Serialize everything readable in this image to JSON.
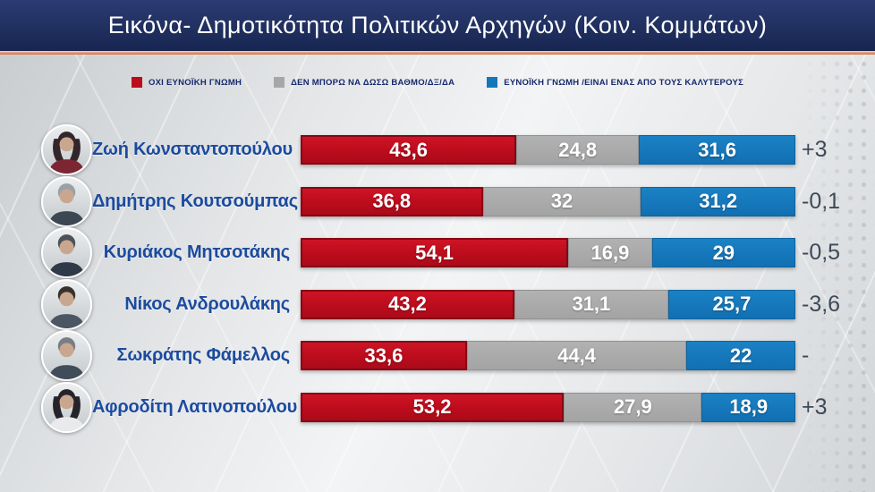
{
  "title": "Εικόνα- Δημοτικότητα Πολιτικών Αρχηγών (Κοιν. Κομμάτων)",
  "colors": {
    "titlebar_navy": "#20305f",
    "title_underline_orange": "#e59268",
    "unfavorable_red": "#bb0c1c",
    "neutral_gray": "#a7a7a7",
    "favorable_blue": "#1477bb",
    "name_blue": "#1c4b9e",
    "legend_text_navy": "#16296b",
    "change_text": "#3e4a57"
  },
  "legend": [
    {
      "label": "ΟΧΙ ΕΥΝΟΪΚΗ ΓΝΩΜΗ",
      "color": "#bb0c1c"
    },
    {
      "label": "ΔΕΝ ΜΠΟΡΩ ΝΑ ΔΩΣΩ ΒΑΘΜΟ/ΔΞ/ΔΑ",
      "color": "#a7a7a7"
    },
    {
      "label": "ΕΥΝΟΪΚΗ ΓΝΩΜΗ /ΕΙΝΑΙ ΕΝΑΣ ΑΠΟ ΤΟΥΣ ΚΑΛΥΤΕΡΟΥΣ",
      "color": "#1477bb"
    }
  ],
  "chart_data": {
    "type": "bar",
    "orientation": "horizontal-stacked",
    "title": "Εικόνα- Δημοτικότητα Πολιτικών Αρχηγών (Κοιν. Κομμάτων)",
    "categories": [
      "Ζωή Κωνσταντοπούλου",
      "Δημήτρης Κουτσούμπας",
      "Κυριάκος Μητσοτάκης",
      "Νίκος Ανδρουλάκης",
      "Σωκράτης Φάμελλος",
      "Αφροδίτη Λατινοπούλου"
    ],
    "series": [
      {
        "name": "ΟΧΙ ΕΥΝΟΪΚΗ ΓΝΩΜΗ",
        "color": "#bb0c1c",
        "values": [
          43.6,
          36.8,
          54.1,
          43.2,
          33.6,
          53.2
        ]
      },
      {
        "name": "ΔΕΝ ΜΠΟΡΩ ΝΑ ΔΩΣΩ ΒΑΘΜΟ/ΔΞ/ΔΑ",
        "color": "#a7a7a7",
        "values": [
          24.8,
          32,
          16.9,
          31.1,
          44.4,
          27.9
        ]
      },
      {
        "name": "ΕΥΝΟΪΚΗ ΓΝΩΜΗ /ΕΙΝΑΙ ΕΝΑΣ ΑΠΟ ΤΟΥΣ ΚΑΛΥΤΕΡΟΥΣ",
        "color": "#1477bb",
        "values": [
          31.6,
          31.2,
          29,
          25.7,
          22,
          18.9
        ]
      }
    ],
    "change_vs_previous": [
      "+3",
      "-0,1",
      "-0,5",
      "-3,6",
      "-",
      "+3"
    ],
    "xlim": [
      0,
      100
    ],
    "legend_position": "top",
    "grid": false
  },
  "rows": [
    {
      "name": "Ζωή Κωνσταντοπούλου",
      "values": [
        "43,6",
        "24,8",
        "31,6"
      ],
      "change": "+3"
    },
    {
      "name": "Δημήτρης Κουτσούμπας",
      "values": [
        "36,8",
        "32",
        "31,2"
      ],
      "change": "-0,1"
    },
    {
      "name": "Κυριάκος Μητσοτάκης",
      "values": [
        "54,1",
        "16,9",
        "29"
      ],
      "change": "-0,5"
    },
    {
      "name": "Νίκος Ανδρουλάκης",
      "values": [
        "43,2",
        "31,1",
        "25,7"
      ],
      "change": "-3,6"
    },
    {
      "name": "Σωκράτης Φάμελλος",
      "values": [
        "33,6",
        "44,4",
        "22"
      ],
      "change": "-"
    },
    {
      "name": "Αφροδίτη Λατινοπούλου",
      "values": [
        "53,2",
        "27,9",
        "18,9"
      ],
      "change": "+3"
    }
  ]
}
